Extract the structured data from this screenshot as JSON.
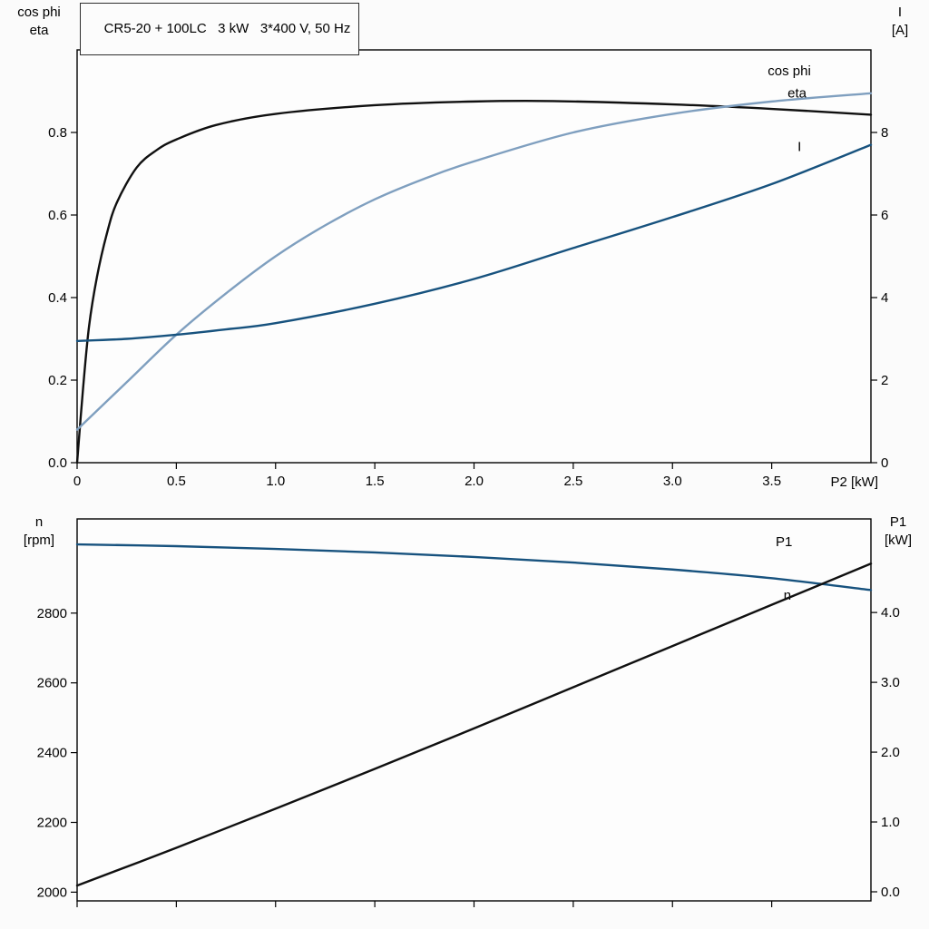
{
  "title_box": "CR5-20 + 100LC   3 kW   3*400 V, 50 Hz",
  "colors": {
    "black": "#101010",
    "light_blue": "#7f9fbf",
    "dark_blue": "#17527e",
    "frame": "#000000",
    "plot_bg": "#fdfdfd"
  },
  "axis_labels": {
    "top_left_1": "cos phi",
    "top_left_2": "eta",
    "top_right_1": "I",
    "top_right_2": "[A]",
    "x_label": "P2 [kW]",
    "bottom_left_1": "n",
    "bottom_left_2": "[rpm]",
    "bottom_right_1": "P1",
    "bottom_right_2": "[kW]"
  },
  "chart_data": [
    {
      "type": "line",
      "title": "CR5-20 + 100LC   3 kW   3*400 V, 50 Hz",
      "xlabel": "P2 [kW]",
      "ylabel_left": "cos phi / eta",
      "ylabel_right": "I [A]",
      "xlim": [
        0,
        4.0
      ],
      "ylim_left": [
        0,
        1.0
      ],
      "ylim_right": [
        0,
        10
      ],
      "grid": false,
      "xticks": [
        0,
        0.5,
        1.0,
        1.5,
        2.0,
        2.5,
        3.0,
        3.5
      ],
      "xtick_labels": [
        "0",
        "0.5",
        "1.0",
        "1.5",
        "2.0",
        "2.5",
        "3.0",
        "3.5"
      ],
      "yticks_left": [
        0.0,
        0.2,
        0.4,
        0.6,
        0.8
      ],
      "ytick_labels_left": [
        "0.0",
        "0.2",
        "0.4",
        "0.6",
        "0.8"
      ],
      "yticks_right": [
        0,
        2,
        4,
        6,
        8
      ],
      "ytick_labels_right": [
        "0",
        "2",
        "4",
        "6",
        "8"
      ],
      "series": [
        {
          "name": "eta",
          "axis": "left",
          "color": "black",
          "x": [
            0,
            0.03,
            0.06,
            0.1,
            0.15,
            0.2,
            0.3,
            0.4,
            0.5,
            0.7,
            1.0,
            1.5,
            2.0,
            2.4,
            3.0,
            3.5,
            4.0
          ],
          "y": [
            0,
            0.18,
            0.33,
            0.45,
            0.555,
            0.63,
            0.715,
            0.757,
            0.783,
            0.818,
            0.845,
            0.866,
            0.875,
            0.876,
            0.868,
            0.857,
            0.843
          ],
          "label": {
            "text": "eta",
            "x": 3.58,
            "y": 0.885
          }
        },
        {
          "name": "cos phi",
          "axis": "left",
          "color": "light_blue",
          "x": [
            0,
            0.25,
            0.5,
            0.75,
            1.0,
            1.25,
            1.5,
            1.75,
            2.0,
            2.5,
            3.0,
            3.5,
            4.0
          ],
          "y": [
            0.08,
            0.195,
            0.31,
            0.41,
            0.5,
            0.575,
            0.638,
            0.688,
            0.73,
            0.8,
            0.845,
            0.875,
            0.895
          ],
          "label": {
            "text": "cos phi",
            "x": 3.48,
            "y": 0.938
          }
        },
        {
          "name": "I",
          "axis": "right",
          "color": "dark_blue",
          "x": [
            0,
            0.25,
            0.5,
            0.75,
            1.0,
            1.5,
            2.0,
            2.5,
            3.0,
            3.5,
            4.0
          ],
          "y": [
            2.95,
            3.0,
            3.1,
            3.23,
            3.38,
            3.85,
            4.45,
            5.2,
            5.95,
            6.75,
            7.7
          ],
          "label": {
            "text": "I",
            "x": 3.63,
            "y": 7.55
          }
        }
      ]
    },
    {
      "type": "line",
      "title": "",
      "xlabel": "",
      "ylabel_left": "n [rpm]",
      "ylabel_right": "P1 [kW]",
      "xlim": [
        0,
        4.0
      ],
      "ylim_left": [
        1975,
        3070
      ],
      "ylim_right": [
        -0.13,
        5.34
      ],
      "grid": false,
      "xticks": [
        0,
        0.5,
        1.0,
        1.5,
        2.0,
        2.5,
        3.0,
        3.5
      ],
      "xtick_labels": [
        "",
        "",
        "",
        "",
        "",
        "",
        "",
        ""
      ],
      "yticks_left": [
        2000,
        2200,
        2400,
        2600,
        2800
      ],
      "ytick_labels_left": [
        "2000",
        "2200",
        "2400",
        "2600",
        "2800"
      ],
      "yticks_right": [
        0,
        1,
        2,
        3,
        4
      ],
      "ytick_labels_right": [
        "0.0",
        "1.0",
        "2.0",
        "3.0",
        "4.0"
      ],
      "series": [
        {
          "name": "n",
          "axis": "left",
          "color": "dark_blue",
          "x": [
            0,
            0.5,
            1.0,
            1.5,
            2.0,
            2.5,
            3.0,
            3.5,
            4.0
          ],
          "y": [
            2997,
            2992,
            2984,
            2974,
            2961,
            2945,
            2925,
            2900,
            2866
          ],
          "label": {
            "text": "n",
            "x": 3.56,
            "y": 2838
          }
        },
        {
          "name": "P1",
          "axis": "right",
          "color": "black",
          "x": [
            0,
            0.5,
            1.0,
            1.5,
            2.0,
            2.5,
            3.0,
            3.5,
            4.0
          ],
          "y": [
            0.09,
            0.63,
            1.19,
            1.76,
            2.34,
            2.93,
            3.52,
            4.11,
            4.7
          ],
          "label": {
            "text": "P1",
            "x": 3.52,
            "y": 4.95
          }
        }
      ]
    }
  ]
}
